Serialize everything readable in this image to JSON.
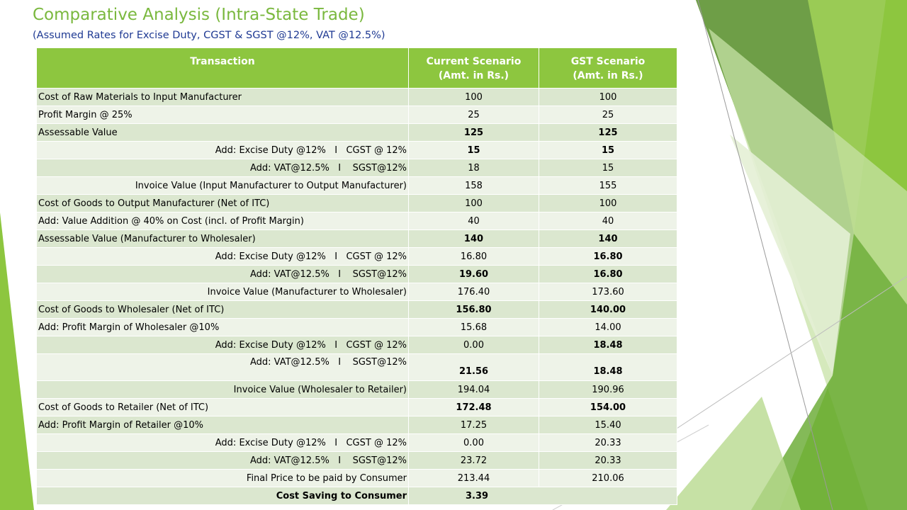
{
  "slide": {
    "title": "Comparative Analysis (Intra-State Trade)",
    "subtitle": "(Assumed Rates for Excise Duty, CGST & SGST @12%, VAT @12.5%)"
  },
  "table": {
    "headers": [
      {
        "line1": "Transaction",
        "line2": ""
      },
      {
        "line1": "Current Scenario",
        "line2": "(Amt. in Rs.)"
      },
      {
        "line1": "GST Scenario",
        "line2": "(Amt. in Rs.)"
      }
    ],
    "rows": [
      {
        "label": "Cost of Raw Materials to Input Manufacturer",
        "current": "100",
        "gst": "100"
      },
      {
        "label": "Profit Margin @ 25%",
        "current": "25",
        "gst": "25"
      },
      {
        "label": "Assessable Value",
        "current": "125",
        "gst": "125"
      },
      {
        "label": "Add: Excise Duty @12%   I   CGST @ 12%",
        "current": "15",
        "gst": "15"
      },
      {
        "label": "Add: VAT@12.5%   I    SGST@12%",
        "current": "18",
        "gst": "15"
      },
      {
        "label": "Invoice Value (Input Manufacturer to Output Manufacturer)",
        "current": "158",
        "gst": "155"
      },
      {
        "label": "Cost of Goods to Output Manufacturer (Net of ITC)",
        "current": "100",
        "gst": "100"
      },
      {
        "label": "Add: Value Addition @ 40% on Cost (incl. of Profit Margin)",
        "current": "40",
        "gst": "40"
      },
      {
        "label": "Assessable Value (Manufacturer to Wholesaler)",
        "current": "140",
        "gst": "140"
      },
      {
        "label": "Add: Excise Duty @12%   I   CGST @ 12%",
        "current": "16.80",
        "gst": "16.80"
      },
      {
        "label": "Add: VAT@12.5%   I    SGST@12%",
        "current": "19.60",
        "gst": "16.80"
      },
      {
        "label": "Invoice Value (Manufacturer to Wholesaler)",
        "current": "176.40",
        "gst": "173.60"
      },
      {
        "label": "Cost of Goods to Wholesaler (Net of ITC)",
        "current": "156.80",
        "gst": "140.00"
      },
      {
        "label": "Add: Profit Margin of Wholesaler @10%",
        "current": "15.68",
        "gst": "14.00"
      },
      {
        "label": "Add: Excise Duty @12%   I   CGST @ 12%",
        "current": "0.00",
        "gst": "18.48"
      },
      {
        "label": "Add: VAT@12.5%   I    SGST@12%",
        "current": "21.56",
        "gst": "18.48"
      },
      {
        "label": "Invoice Value (Wholesaler to Retailer)",
        "current": "194.04",
        "gst": "190.96"
      },
      {
        "label": "Cost of Goods to Retailer (Net of ITC)",
        "current": "172.48",
        "gst": "154.00"
      },
      {
        "label": "Add: Profit Margin of Retailer @10%",
        "current": "17.25",
        "gst": "15.40"
      },
      {
        "label": "Add: Excise Duty @12%   I   CGST @ 12%",
        "current": "0.00",
        "gst": "20.33"
      },
      {
        "label": "Add: VAT@12.5%   I    SGST@12%",
        "current": "23.72",
        "gst": "20.33"
      },
      {
        "label": "Final Price to be paid by Consumer",
        "current": "213.44",
        "gst": "210.06"
      }
    ],
    "summary": {
      "label": "Cost Saving to Consumer",
      "value": "3.39"
    }
  },
  "colors": {
    "title": "#7ab83e",
    "subtitle": "#1f3a93",
    "header_bg": "#8dc63f",
    "row_band_dark": "#dbe7cf",
    "row_band_light": "#eef3e8"
  }
}
